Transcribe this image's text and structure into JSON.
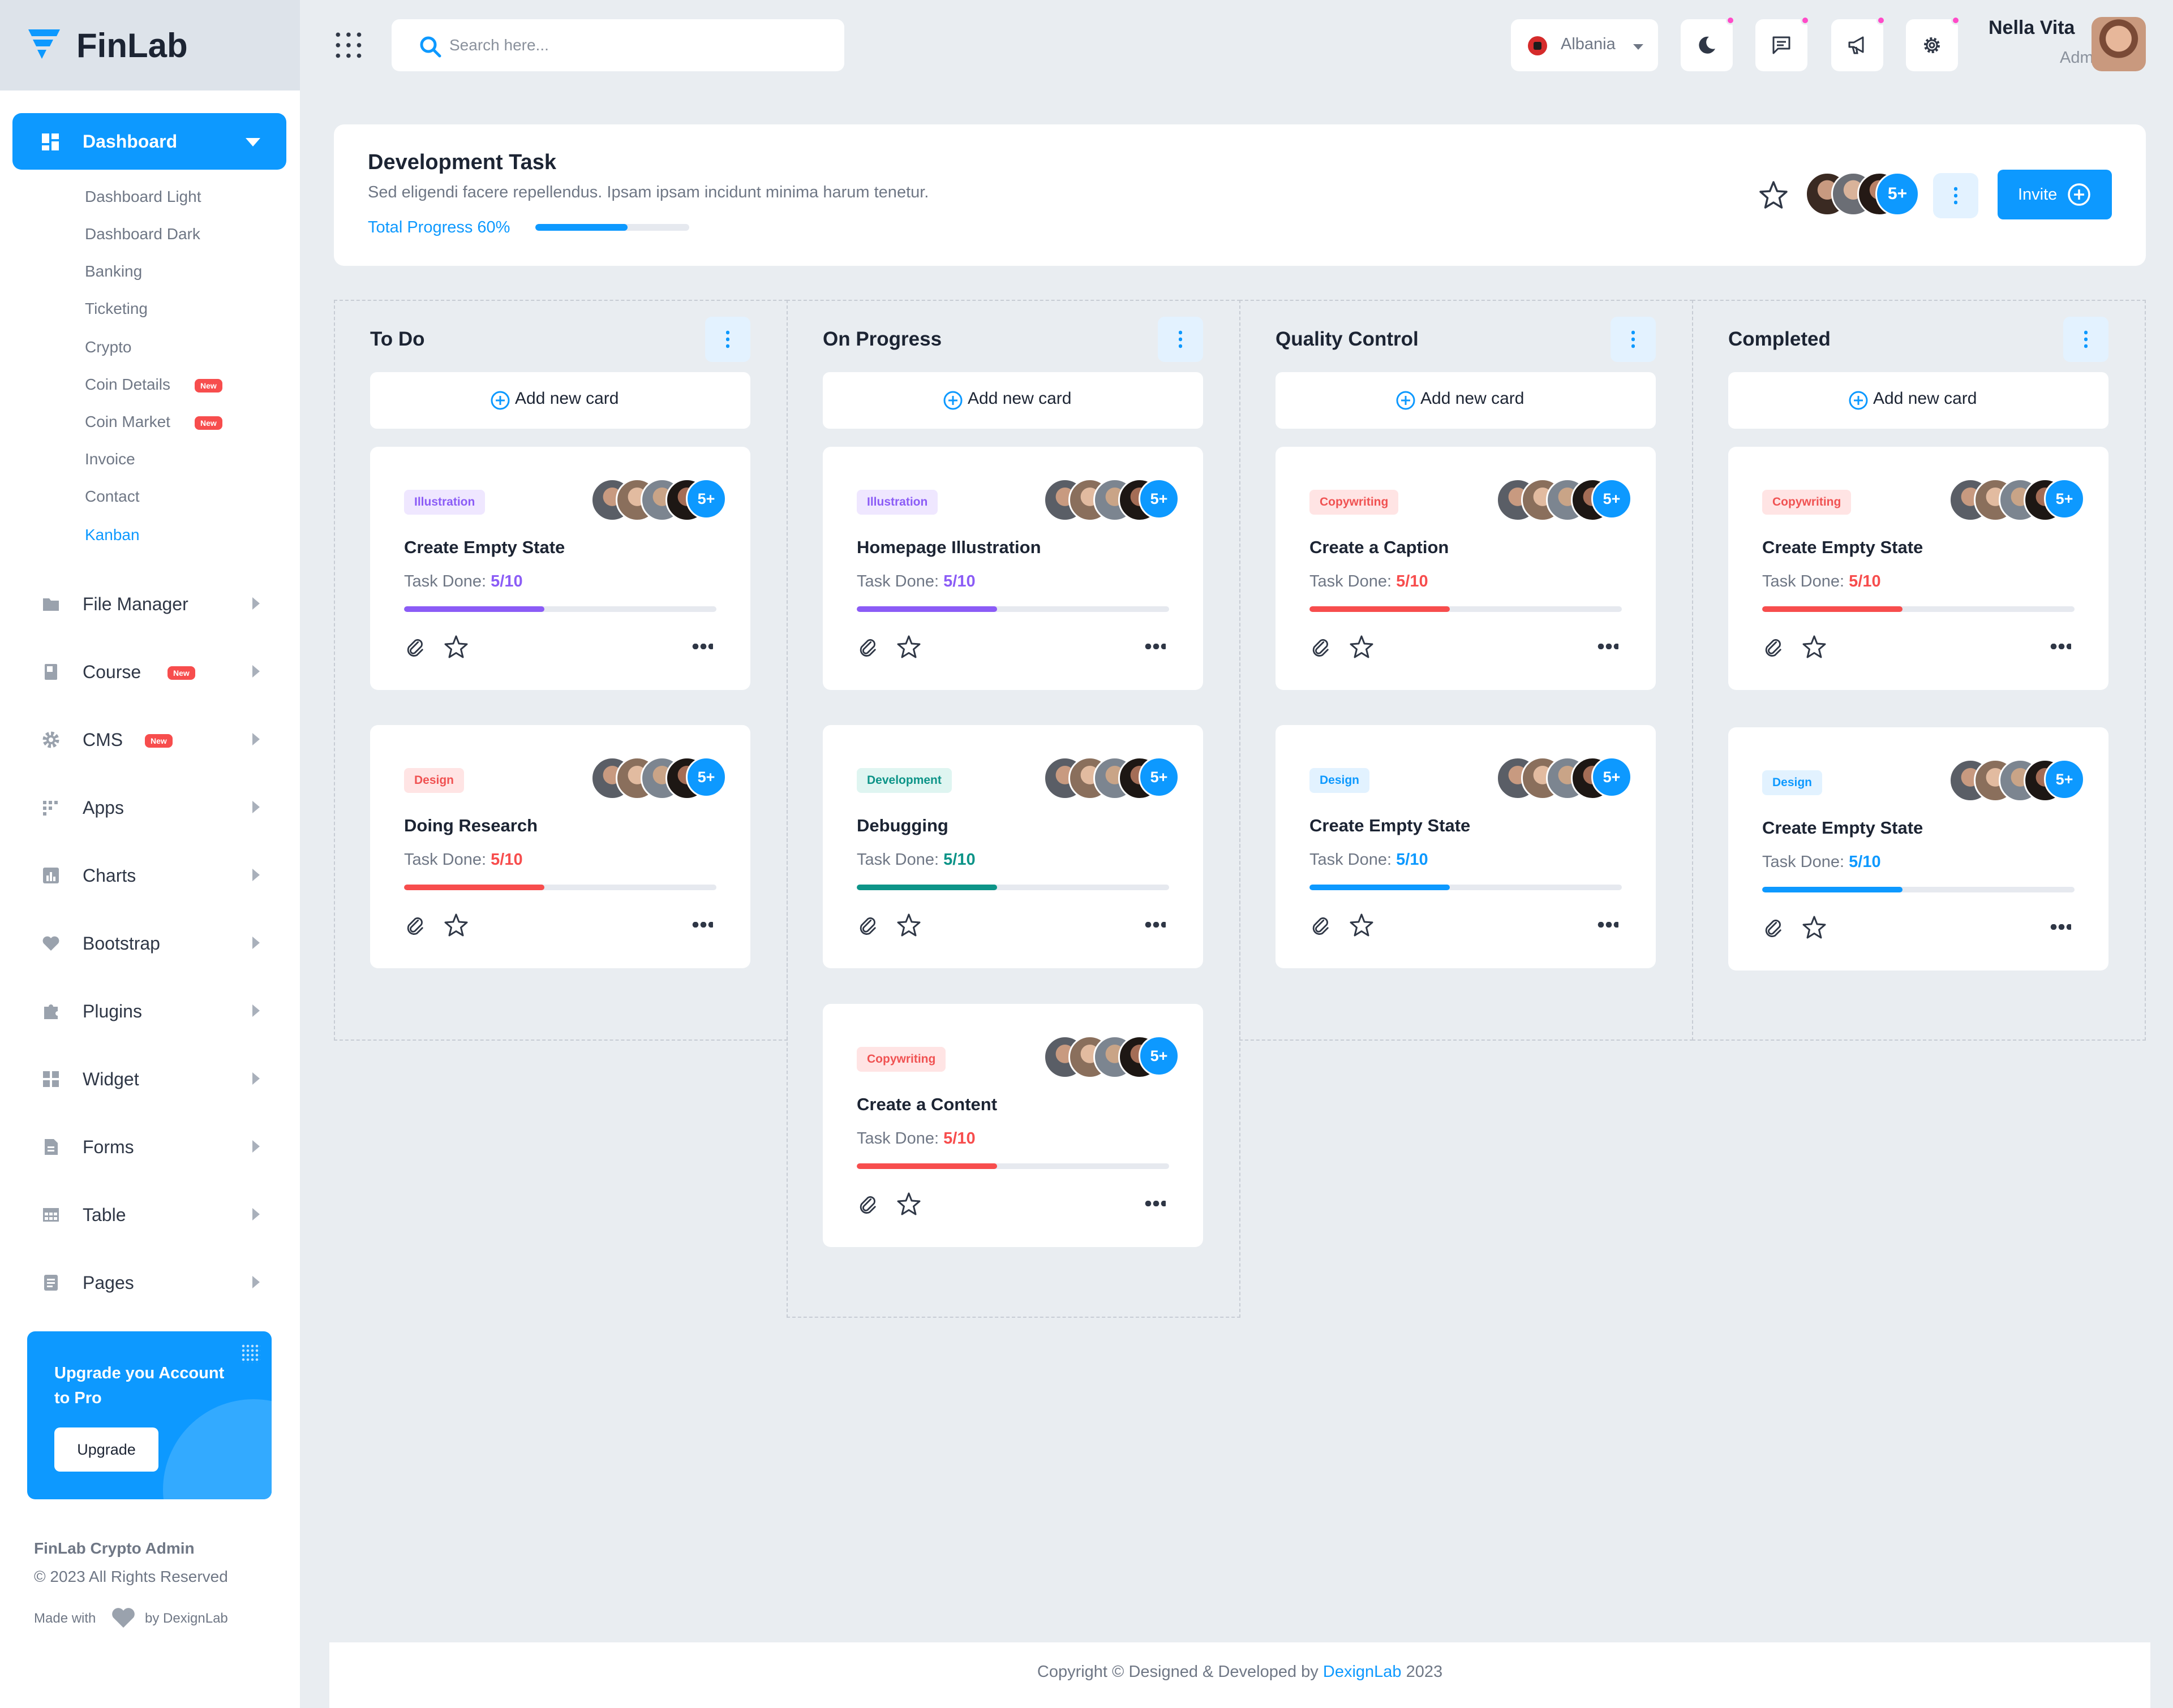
{
  "app": {
    "name": "FinLab"
  },
  "sidebar": {
    "dashboard_label": "Dashboard",
    "sub_items": [
      {
        "label": "Dashboard Light"
      },
      {
        "label": "Dashboard Dark"
      },
      {
        "label": "Banking"
      },
      {
        "label": "Ticketing"
      },
      {
        "label": "Crypto"
      },
      {
        "label": "Coin Details",
        "badge": "New"
      },
      {
        "label": "Coin Market",
        "badge": "New"
      },
      {
        "label": "Invoice"
      },
      {
        "label": "Contact"
      },
      {
        "label": "Kanban",
        "active": true
      }
    ],
    "items": [
      {
        "label": "File Manager",
        "icon": "folder-icon"
      },
      {
        "label": "Course",
        "icon": "book-icon",
        "badge": "New"
      },
      {
        "label": "CMS",
        "icon": "gear-icon",
        "badge": "New"
      },
      {
        "label": "Apps",
        "icon": "apps-icon"
      },
      {
        "label": "Charts",
        "icon": "chart-icon"
      },
      {
        "label": "Bootstrap",
        "icon": "heart-icon"
      },
      {
        "label": "Plugins",
        "icon": "puzzle-icon"
      },
      {
        "label": "Widget",
        "icon": "widget-icon"
      },
      {
        "label": "Forms",
        "icon": "form-icon"
      },
      {
        "label": "Table",
        "icon": "table-icon"
      },
      {
        "label": "Pages",
        "icon": "page-icon"
      }
    ],
    "upgrade": {
      "title": "Upgrade you Account to Pro",
      "button": "Upgrade"
    },
    "footer": {
      "brand": "FinLab Crypto Admin",
      "rights": "© 2023 All Rights Reserved",
      "made_with": "Made with",
      "by": "by DexignLab"
    }
  },
  "header": {
    "search_placeholder": "Search here...",
    "language": "Albania",
    "user": {
      "name": "Nella Vita",
      "role": "Admin"
    }
  },
  "project": {
    "title": "Development Task",
    "description": "Sed eligendi facere repellendus. Ipsam ipsam incidunt minima harum tenetur.",
    "progress_label": "Total Progress 60%",
    "progress": 0.6,
    "more_count": "5+",
    "invite_label": "Invite"
  },
  "board": {
    "add_card_label": "Add new card",
    "task_done_label": "Task Done:",
    "more_count": "5+",
    "columns": [
      {
        "title": "To Do",
        "cards": [
          {
            "tag": "Illustration",
            "title": "Create Empty State",
            "done": "5/10",
            "progress": 0.45
          },
          {
            "tag": "Design",
            "title": "Doing Research",
            "done": "5/10",
            "progress": 0.45
          }
        ]
      },
      {
        "title": "On Progress",
        "cards": [
          {
            "tag": "Illustration",
            "title": "Homepage Illustration",
            "done": "5/10",
            "progress": 0.45
          },
          {
            "tag": "Development",
            "title": "Debugging",
            "done": "5/10",
            "progress": 0.45
          },
          {
            "tag": "Copywriting",
            "title": "Create a Content",
            "done": "5/10",
            "progress": 0.45
          }
        ]
      },
      {
        "title": "Quality Control",
        "cards": [
          {
            "tag": "Copywriting",
            "title": "Create a Caption",
            "done": "5/10",
            "progress": 0.45
          },
          {
            "tag": "Design",
            "title": "Create Empty State",
            "done": "5/10",
            "progress": 0.45
          }
        ]
      },
      {
        "title": "Completed",
        "cards": [
          {
            "tag": "Copywriting",
            "title": "Create Empty State",
            "done": "5/10",
            "progress": 0.45
          },
          {
            "tag": "Design",
            "title": "Create Empty State",
            "done": "5/10",
            "progress": 0.45
          }
        ]
      }
    ]
  },
  "colors": {
    "primary": "#0d99ff",
    "illustration_tag_bg": "#efe7ff",
    "illustration_tag_fg": "#8b5cf6",
    "design_tag_bg": "#ffe4e4",
    "design_tag_fg": "#f05252",
    "development_tag_bg": "#dff5f1",
    "development_tag_fg": "#0d9488",
    "copywriting_tag_bg": "#ffe4e4",
    "copywriting_tag_fg": "#f05252",
    "blue_tag_bg": "#e2f2ff",
    "blue_tag_fg": "#0d99ff",
    "purple_bar": "#8b5cf6",
    "red_bar": "#f74d4d",
    "teal_bar": "#0d9488",
    "blue_bar": "#0d99ff"
  },
  "footer": {
    "text": "Copyright © Designed & Developed by",
    "link": "DexignLab",
    "year": "2023"
  }
}
